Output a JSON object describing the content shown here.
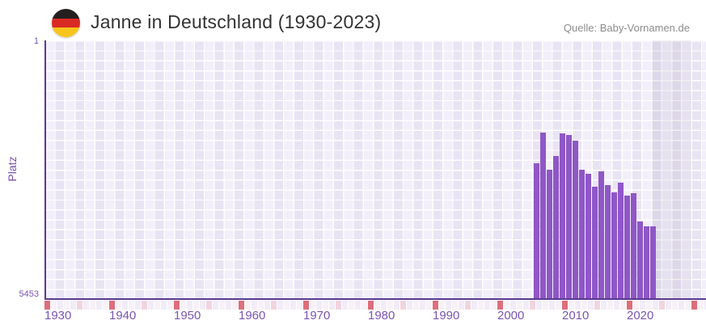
{
  "header": {
    "title": "Janne in Deutschland (1930-2023)",
    "source": "Quelle: Baby-Vornamen.de",
    "flag_icon": "germany-flag",
    "flag_colors": {
      "black": "#231f1e",
      "red": "#d92b23",
      "gold": "#f8c51c"
    }
  },
  "chart_data": {
    "type": "bar",
    "title": "Janne in Deutschland (1930-2023)",
    "xlabel": "",
    "ylabel": "Platz",
    "y_axis": {
      "top_tick": "1",
      "bottom_tick": "5453",
      "min": 1,
      "max": 5453,
      "inverted": true,
      "note": "rank 1 at top, bars grow upward from bottom toward better rank"
    },
    "x_tick_labels": [
      "1930",
      "1940",
      "1950",
      "1960",
      "1970",
      "1980",
      "1990",
      "2000",
      "2010",
      "2020"
    ],
    "x_tick_years": [
      1930,
      1940,
      1950,
      1960,
      1970,
      1980,
      1990,
      2000,
      2010,
      2020
    ],
    "x_range_years": [
      1928,
      2030
    ],
    "grid": true,
    "legend": false,
    "series": [
      {
        "name": "Platz",
        "years": [
          2004,
          2005,
          2006,
          2007,
          2008,
          2009,
          2010,
          2011,
          2012,
          2013,
          2014,
          2015,
          2016,
          2017,
          2018,
          2019,
          2020,
          2021,
          2022
        ],
        "ranks": [
          2585,
          1945,
          2725,
          2430,
          1950,
          1985,
          2115,
          2725,
          2820,
          3085,
          2760,
          3050,
          3210,
          3000,
          3280,
          3225,
          3830,
          3925,
          3925
        ]
      }
    ],
    "colors": {
      "bar": "#8f57c7",
      "axis_line": "#5b3990",
      "tick_label": "#7a55b2",
      "plot_bg_light": "#f3effa",
      "plot_bg_dark": "#e9e4f3",
      "strip_decade": "#dd6e7c",
      "strip_half_decade": "#f1d4de",
      "strip_light_even": "#f1ecf8",
      "strip_light_odd": "#f8f1f6"
    }
  }
}
